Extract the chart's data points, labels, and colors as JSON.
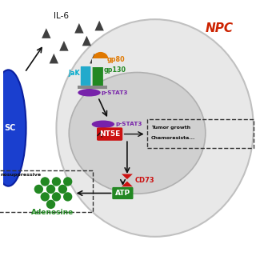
{
  "bg_color": "#ffffff",
  "il6_label": "IL-6",
  "npc_label": "NPC",
  "jak_label": "JaK",
  "gp80_label": "gp80",
  "gp130_label": "gp130",
  "pstat3_label_outer": "p-STAT3",
  "pstat3_label_inner": "p-STAT3",
  "nt5e_label": "NT5E",
  "cd73_label": "CD73",
  "atp_label": "ATP",
  "adenosine_label": "Adenosine",
  "tumor_line1": "Tumor growth",
  "tumor_line2": "Chemoresista...",
  "immunosuppressive_label": "nosuppressive",
  "msc_label": "SC",
  "colors": {
    "npc_cell": "#e8e8e8",
    "npc_cell_border": "#c0c0c0",
    "nucleus": "#d0d0d0",
    "nucleus_border": "#b0b0b0",
    "msc": "#1a3fcf",
    "msc_border": "#0a1fa0",
    "il6_triangles": "#404040",
    "npc_text": "#cc2200",
    "jak_text": "#00aacc",
    "gp80_text": "#e07800",
    "gp130_text": "#228822",
    "pstat3_text": "#7722aa",
    "nt5e_box": "#cc1111",
    "nt5e_text": "#ffffff",
    "cd73_color": "#cc1111",
    "cd73_text": "#cc1111",
    "atp_box": "#228822",
    "atp_text": "#ffffff",
    "adenosine_text": "#228822",
    "adenosine_dots": "#228822",
    "arrow_color": "#111111",
    "dashed_box": "#333333",
    "jak_rect": "#22aacc",
    "gp130_rect": "#228822",
    "gp80_color": "#e07800",
    "pstat3_oval": "#7722aa",
    "receptor_base": "#888888"
  }
}
